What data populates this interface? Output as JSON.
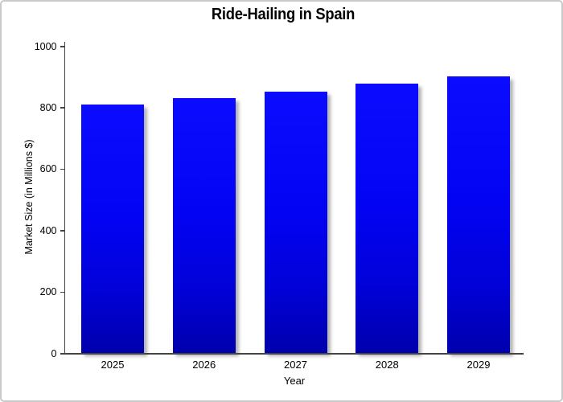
{
  "chart_data": {
    "type": "bar",
    "title": "Ride-Hailing in Spain",
    "xlabel": "Year",
    "ylabel": "Market Size (in Millions $)",
    "categories": [
      "2025",
      "2026",
      "2027",
      "2028",
      "2029"
    ],
    "values": [
      808,
      830,
      852,
      876,
      900
    ],
    "ylim": [
      0,
      1000
    ],
    "yticks": [
      0,
      200,
      400,
      600,
      800,
      1000
    ],
    "grid": false,
    "legend": false,
    "bar_color_top": "#0b0bff",
    "bar_color_bottom": "#0000ad",
    "axis_color": "#444444",
    "text_color": "#000000",
    "frame_border_color": "#c9c9c9",
    "background_color": "#ffffff"
  }
}
